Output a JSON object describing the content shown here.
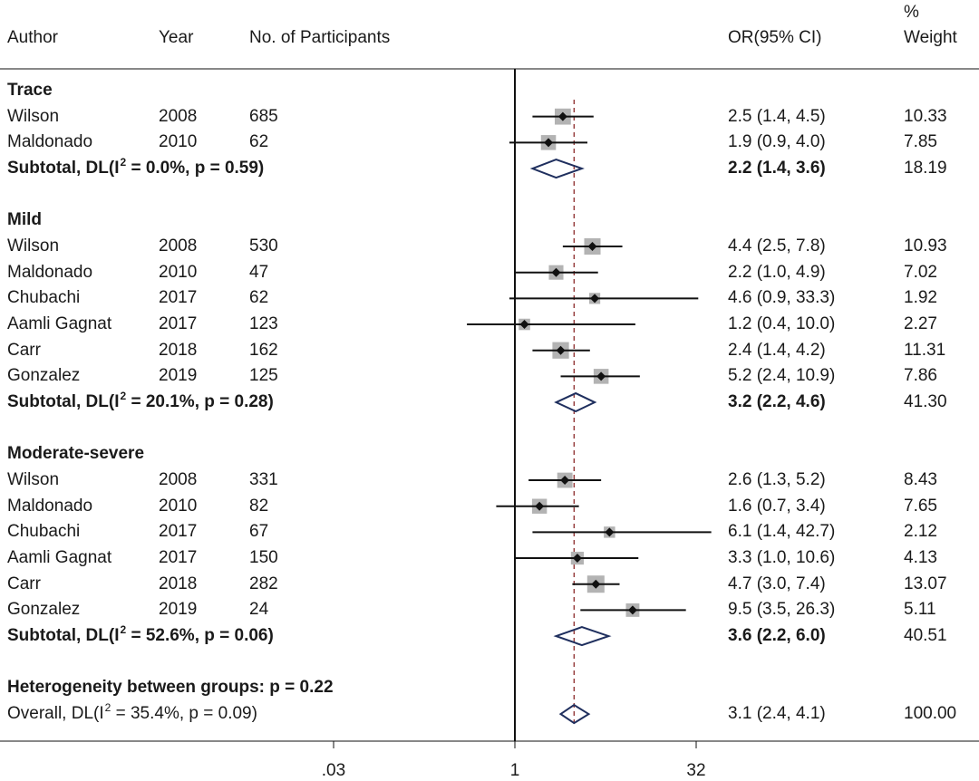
{
  "columns": {
    "author": "Author",
    "year": "Year",
    "participants": "No. of Participants",
    "or": "OR(95% CI)",
    "weight_pct": "%",
    "weight": "Weight"
  },
  "groups": [
    {
      "name": "Trace",
      "studies": [
        {
          "author": "Wilson",
          "year": "2008",
          "n": "685",
          "or": 2.5,
          "lo": 1.4,
          "hi": 4.5,
          "ci_text": "2.5 (1.4, 4.5)",
          "weight": "10.33"
        },
        {
          "author": "Maldonado",
          "year": "2010",
          "n": "62",
          "or": 1.9,
          "lo": 0.9,
          "hi": 4.0,
          "ci_text": "1.9 (0.9, 4.0)",
          "weight": "7.85"
        }
      ],
      "subtotal": {
        "label": "Subtotal, DL(I",
        "sup": "2",
        "stats": " = 0.0%, p = 0.59)",
        "or": 2.2,
        "lo": 1.4,
        "hi": 3.6,
        "ci_text": "2.2 (1.4, 3.6)",
        "weight": "18.19"
      }
    },
    {
      "name": "Mild",
      "studies": [
        {
          "author": "Wilson",
          "year": "2008",
          "n": "530",
          "or": 4.4,
          "lo": 2.5,
          "hi": 7.8,
          "ci_text": "4.4 (2.5, 7.8)",
          "weight": "10.93"
        },
        {
          "author": "Maldonado",
          "year": "2010",
          "n": "47",
          "or": 2.2,
          "lo": 1.0,
          "hi": 4.9,
          "ci_text": "2.2 (1.0, 4.9)",
          "weight": "7.02"
        },
        {
          "author": "Chubachi",
          "year": "2017",
          "n": "62",
          "or": 4.6,
          "lo": 0.9,
          "hi": 33.3,
          "ci_text": "4.6 (0.9, 33.3)",
          "weight": "1.92"
        },
        {
          "author": "Aamli Gagnat",
          "year": "2017",
          "n": "123",
          "or": 1.2,
          "lo": 0.4,
          "hi": 10.0,
          "ci_text": "1.2 (0.4, 10.0)",
          "weight": "2.27"
        },
        {
          "author": "Carr",
          "year": "2018",
          "n": "162",
          "or": 2.4,
          "lo": 1.4,
          "hi": 4.2,
          "ci_text": "2.4 (1.4, 4.2)",
          "weight": "11.31"
        },
        {
          "author": "Gonzalez",
          "year": "2019",
          "n": "125",
          "or": 5.2,
          "lo": 2.4,
          "hi": 10.9,
          "ci_text": "5.2 (2.4, 10.9)",
          "weight": "7.86"
        }
      ],
      "subtotal": {
        "label": "Subtotal, DL(I",
        "sup": "2",
        "stats": " = 20.1%, p = 0.28)",
        "or": 3.2,
        "lo": 2.2,
        "hi": 4.6,
        "ci_text": "3.2 (2.2, 4.6)",
        "weight": "41.30"
      }
    },
    {
      "name": "Moderate-severe",
      "studies": [
        {
          "author": "Wilson",
          "year": "2008",
          "n": "331",
          "or": 2.6,
          "lo": 1.3,
          "hi": 5.2,
          "ci_text": "2.6 (1.3, 5.2)",
          "weight": "8.43"
        },
        {
          "author": "Maldonado",
          "year": "2010",
          "n": "82",
          "or": 1.6,
          "lo": 0.7,
          "hi": 3.4,
          "ci_text": "1.6 (0.7, 3.4)",
          "weight": "7.65"
        },
        {
          "author": "Chubachi",
          "year": "2017",
          "n": "67",
          "or": 6.1,
          "lo": 1.4,
          "hi": 42.7,
          "ci_text": "6.1 (1.4, 42.7)",
          "weight": "2.12"
        },
        {
          "author": "Aamli Gagnat",
          "year": "2017",
          "n": "150",
          "or": 3.3,
          "lo": 1.0,
          "hi": 10.6,
          "ci_text": "3.3 (1.0, 10.6)",
          "weight": "4.13"
        },
        {
          "author": "Carr",
          "year": "2018",
          "n": "282",
          "or": 4.7,
          "lo": 3.0,
          "hi": 7.4,
          "ci_text": "4.7 (3.0, 7.4)",
          "weight": "13.07"
        },
        {
          "author": "Gonzalez",
          "year": "2019",
          "n": "24",
          "or": 9.5,
          "lo": 3.5,
          "hi": 26.3,
          "ci_text": "9.5 (3.5, 26.3)",
          "weight": "5.11"
        }
      ],
      "subtotal": {
        "label": "Subtotal, DL(I",
        "sup": "2",
        "stats": " = 52.6%, p = 0.06)",
        "or": 3.6,
        "lo": 2.2,
        "hi": 6.0,
        "ci_text": "3.6 (2.2, 6.0)",
        "weight": "40.51"
      }
    }
  ],
  "heterogeneity": "Heterogeneity between groups: p = 0.22",
  "overall": {
    "label": "Overall, DL(I",
    "sup": "2",
    "stats": " = 35.4%, p = 0.09)",
    "or": 3.1,
    "lo": 2.4,
    "hi": 4.1,
    "ci_text": "3.1 (2.4, 4.1)",
    "weight": "100.00"
  },
  "chart_data": {
    "type": "scatter",
    "scale": "log",
    "x_ticks": [
      ".03",
      "1",
      "32"
    ],
    "x_tick_values": [
      0.03125,
      1,
      32
    ],
    "null_line": 1,
    "reference_line": 3.1,
    "colors": {
      "marker": "#111111",
      "box": "#b3b3b3",
      "diamond": "#1f2f5e",
      "reference": "#8b2a2a",
      "axis": "#111111"
    }
  }
}
